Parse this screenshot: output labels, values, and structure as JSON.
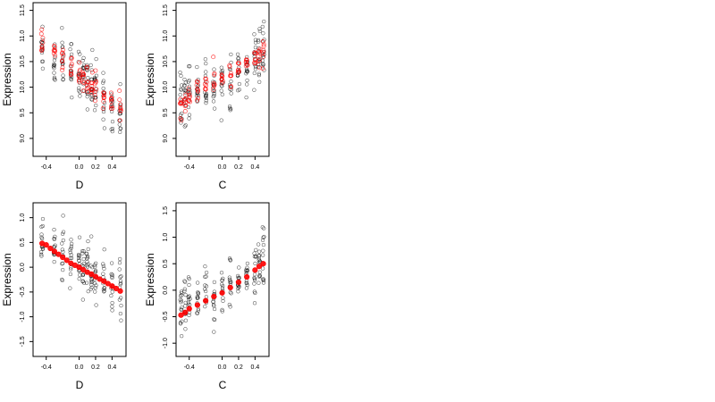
{
  "chart_data": [
    {
      "type": "scatter",
      "xlabel": "D",
      "ylabel": "Expression",
      "xticks": [
        "-0.4",
        "0.0",
        "0.2",
        "0.4"
      ],
      "xtick_values": [
        -0.4,
        0.0,
        0.2,
        0.4
      ],
      "yticks": [
        "9.0",
        "9.5",
        "10.0",
        "10.5",
        "11.0",
        "11.5"
      ],
      "ytick_values": [
        9.0,
        9.5,
        10.0,
        10.5,
        11.0,
        11.5
      ],
      "xlim": [
        -0.56,
        0.57
      ],
      "ylim": [
        8.65,
        11.65
      ],
      "colors": {
        "observed": "#000000",
        "fitted": "#ff0000"
      },
      "series": [
        {
          "role": "observed",
          "x_values": [
            -0.45,
            -0.3,
            -0.2,
            -0.1,
            0.0,
            0.05,
            0.1,
            0.15,
            0.2,
            0.3,
            0.4,
            0.5
          ],
          "centers": [
            10.8,
            10.5,
            10.6,
            10.4,
            10.3,
            10.2,
            10.1,
            10.0,
            9.9,
            9.8,
            9.6,
            9.5
          ],
          "spreads": [
            0.5,
            0.55,
            0.5,
            0.55,
            0.5,
            0.45,
            0.55,
            0.5,
            0.5,
            0.45,
            0.5,
            0.4
          ]
        },
        {
          "role": "fitted",
          "x_values": [
            -0.45,
            -0.3,
            -0.2,
            -0.1,
            0.0,
            0.05,
            0.1,
            0.15,
            0.2,
            0.3,
            0.4,
            0.5
          ],
          "centers": [
            10.9,
            10.65,
            10.5,
            10.4,
            10.25,
            10.2,
            10.1,
            10.05,
            9.95,
            9.85,
            9.7,
            9.55
          ],
          "spreads": [
            0.3,
            0.28,
            0.3,
            0.28,
            0.3,
            0.25,
            0.3,
            0.28,
            0.25,
            0.25,
            0.22,
            0.2
          ]
        }
      ]
    },
    {
      "type": "scatter",
      "xlabel": "C",
      "ylabel": "Expression",
      "xticks": [
        "-0.4",
        "0.0",
        "0.2",
        "0.4"
      ],
      "xtick_values": [
        -0.4,
        0.0,
        0.2,
        0.4
      ],
      "yticks": [
        "9.0",
        "9.5",
        "10.0",
        "10.5",
        "11.0",
        "11.5"
      ],
      "ytick_values": [
        9.0,
        9.5,
        10.0,
        10.5,
        11.0,
        11.5
      ],
      "xlim": [
        -0.56,
        0.57
      ],
      "ylim": [
        8.65,
        11.65
      ],
      "colors": {
        "observed": "#000000",
        "fitted": "#ff0000"
      },
      "series": [
        {
          "role": "observed",
          "x_values": [
            -0.5,
            -0.45,
            -0.4,
            -0.3,
            -0.2,
            -0.1,
            0.0,
            0.1,
            0.2,
            0.3,
            0.4,
            0.45,
            0.5
          ],
          "centers": [
            9.85,
            9.9,
            9.95,
            10.0,
            10.05,
            10.05,
            10.1,
            10.2,
            10.3,
            10.35,
            10.5,
            10.6,
            10.7
          ],
          "spreads": [
            0.55,
            0.5,
            0.5,
            0.35,
            0.45,
            0.6,
            0.4,
            0.6,
            0.3,
            0.3,
            0.55,
            0.5,
            0.6
          ]
        },
        {
          "role": "fitted",
          "x_values": [
            -0.5,
            -0.45,
            -0.4,
            -0.3,
            -0.2,
            -0.1,
            0.0,
            0.1,
            0.2,
            0.3,
            0.4,
            0.45,
            0.5
          ],
          "centers": [
            9.55,
            9.7,
            9.8,
            9.95,
            10.05,
            10.1,
            10.15,
            10.25,
            10.35,
            10.45,
            10.55,
            10.6,
            10.65
          ],
          "spreads": [
            0.25,
            0.25,
            0.25,
            0.2,
            0.2,
            0.3,
            0.15,
            0.3,
            0.15,
            0.15,
            0.3,
            0.3,
            0.3
          ]
        }
      ]
    },
    {
      "type": "scatter",
      "xlabel": "D",
      "ylabel": "Expression",
      "xticks": [
        "-0.4",
        "0.0",
        "0.2",
        "0.4"
      ],
      "xtick_values": [
        -0.4,
        0.0,
        0.2,
        0.4
      ],
      "yticks": [
        "-1.5",
        "-1.0",
        "-0.5",
        "0.0",
        "0.5",
        "1.0"
      ],
      "ytick_values": [
        -1.5,
        -1.0,
        -0.5,
        0.0,
        0.5,
        1.0
      ],
      "xlim": [
        -0.56,
        0.57
      ],
      "ylim": [
        -1.8,
        1.3
      ],
      "colors": {
        "observed": "#000000",
        "fitted": "#ff0000"
      },
      "series": [
        {
          "role": "observed",
          "x_values": [
            -0.45,
            -0.3,
            -0.2,
            -0.1,
            0.0,
            0.05,
            0.1,
            0.15,
            0.2,
            0.3,
            0.4,
            0.5
          ],
          "centers": [
            0.45,
            0.35,
            0.3,
            0.2,
            0.1,
            0.05,
            0.0,
            -0.1,
            -0.2,
            -0.3,
            -0.4,
            -0.5
          ],
          "spreads": [
            0.45,
            0.5,
            0.55,
            0.5,
            0.5,
            0.45,
            0.5,
            0.55,
            0.5,
            0.45,
            0.55,
            0.45
          ]
        },
        {
          "role": "fitted",
          "x_values": [
            -0.45,
            -0.4,
            -0.35,
            -0.3,
            -0.25,
            -0.2,
            -0.15,
            -0.1,
            -0.05,
            0.0,
            0.05,
            0.1,
            0.15,
            0.2,
            0.25,
            0.3,
            0.35,
            0.4,
            0.45,
            0.5
          ],
          "values": [
            0.48,
            0.45,
            0.38,
            0.32,
            0.26,
            0.2,
            0.14,
            0.08,
            0.04,
            0.0,
            -0.05,
            -0.1,
            -0.14,
            -0.19,
            -0.24,
            -0.28,
            -0.33,
            -0.38,
            -0.43,
            -0.48
          ]
        }
      ]
    },
    {
      "type": "scatter",
      "xlabel": "C",
      "ylabel": "Expression",
      "xticks": [
        "-0.4",
        "0.0",
        "0.2",
        "0.4"
      ],
      "xtick_values": [
        -0.4,
        0.0,
        0.2,
        0.4
      ],
      "yticks": [
        "-1.0",
        "-0.5",
        "0.0",
        "0.5",
        "1.0",
        "1.5"
      ],
      "ytick_values": [
        -1.0,
        -0.5,
        0.0,
        0.5,
        1.0,
        1.5
      ],
      "xlim": [
        -0.56,
        0.57
      ],
      "ylim": [
        -1.25,
        1.65
      ],
      "colors": {
        "observed": "#000000",
        "fitted": "#ff0000"
      },
      "series": [
        {
          "role": "observed",
          "x_values": [
            -0.5,
            -0.45,
            -0.4,
            -0.3,
            -0.2,
            -0.1,
            0.0,
            0.1,
            0.2,
            0.3,
            0.4,
            0.45,
            0.5
          ],
          "centers": [
            -0.4,
            -0.35,
            -0.3,
            -0.25,
            -0.15,
            -0.1,
            0.0,
            0.05,
            0.2,
            0.3,
            0.4,
            0.5,
            0.6
          ],
          "spreads": [
            0.5,
            0.55,
            0.5,
            0.35,
            0.45,
            0.6,
            0.4,
            0.6,
            0.3,
            0.3,
            0.55,
            0.5,
            0.6
          ]
        },
        {
          "role": "fitted",
          "x_values": [
            -0.5,
            -0.45,
            -0.4,
            -0.3,
            -0.2,
            -0.1,
            0.0,
            0.1,
            0.2,
            0.3,
            0.4,
            0.45,
            0.5
          ],
          "values": [
            -0.47,
            -0.42,
            -0.35,
            -0.28,
            -0.2,
            -0.12,
            -0.05,
            0.05,
            0.15,
            0.25,
            0.38,
            0.45,
            0.5
          ]
        }
      ]
    }
  ]
}
